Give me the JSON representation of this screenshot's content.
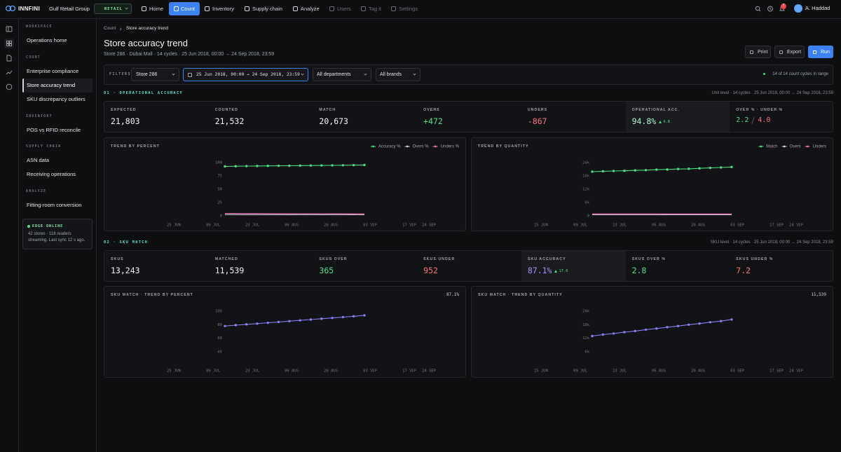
{
  "nav": {
    "brand": "INNFINI",
    "org": "Gulf Retail Group",
    "badge": "RETAIL",
    "items": [
      {
        "label": "Home"
      },
      {
        "label": "Count",
        "active": true
      },
      {
        "label": "Inventory"
      },
      {
        "label": "Supply chain"
      },
      {
        "label": "Analyze"
      },
      {
        "label": "Users",
        "dim": true
      },
      {
        "label": "Tag it",
        "dim": true
      },
      {
        "label": "Settings",
        "dim": true
      }
    ],
    "notifications": 7,
    "user": "A. Haddad"
  },
  "sidebar": {
    "sections": [
      {
        "title": "WORKSPACE",
        "items": [
          {
            "label": "Operations home"
          }
        ]
      },
      {
        "title": "COUNT",
        "items": [
          {
            "label": "Enterprise compliance"
          },
          {
            "label": "Store accuracy trend",
            "active": true
          },
          {
            "label": "SKU discrepancy outliers"
          }
        ]
      },
      {
        "title": "INVENTORY",
        "items": [
          {
            "label": "POS vs RFID reconcile"
          }
        ]
      },
      {
        "title": "SUPPLY CHAIN",
        "items": [
          {
            "label": "ASN data"
          },
          {
            "label": "Receiving operations"
          }
        ]
      },
      {
        "title": "ANALYZE",
        "items": [
          {
            "label": "Fitting-room conversion"
          }
        ]
      }
    ],
    "status": {
      "title": "EDGE ONLINE",
      "text": "42 stores · 118 readers streaming. Last sync 12 s ago."
    }
  },
  "page": {
    "breadcrumb": [
      "Count",
      "Store accuracy trend"
    ],
    "title": "Store accuracy trend",
    "subtitle": "Store 286 · Dubai Mall · 14 cycles · 25 Jun 2018, 00:00 → 24 Sep 2018, 23:59",
    "actions": [
      {
        "label": "Print"
      },
      {
        "label": "Export"
      },
      {
        "label": "Run",
        "primary": true
      }
    ]
  },
  "filters": {
    "label": "FILTERS",
    "store": "Store 286",
    "range": "25 Jun 2018, 00:00 → 24 Sep 2018, 23:59",
    "department": "All departments",
    "brand": "All brands",
    "summary": "14 of 14 count cycles in range"
  },
  "sections": [
    {
      "heading": "01 · OPERATIONAL ACCURACY",
      "meta": "Unit level · 14 cycles · 25 Jun 2018, 00:00 → 24 Sep 2018, 23:59",
      "kpis": [
        {
          "label": "EXPECTED",
          "value": "21,803"
        },
        {
          "label": "COUNTED",
          "value": "21,532"
        },
        {
          "label": "MATCH",
          "value": "20,673"
        },
        {
          "label": "OVERS",
          "value": "+472",
          "tone": "green"
        },
        {
          "label": "UNDERS",
          "value": "-867",
          "tone": "red"
        },
        {
          "label": "OPERATIONAL ACC.",
          "value": "94.8%",
          "tone": "mint",
          "delta": "4.8",
          "highlight": true
        },
        {
          "label": "OVER % · UNDER %",
          "values": [
            "2.2",
            "4.0"
          ],
          "tones": [
            "green",
            "red"
          ]
        }
      ],
      "charts": [
        {
          "type": "line",
          "title": "TREND BY PERCENT",
          "ylim": [
            0,
            100
          ],
          "yticks": [
            0,
            25,
            50,
            75,
            100
          ],
          "x_labels": [
            "25 JUN",
            "09 JUL",
            "23 JUL",
            "06 AUG",
            "20 AUG",
            "03 SEP",
            "17 SEP",
            "24 SEP"
          ],
          "series": [
            {
              "name": "Accuracy %",
              "color": "#4ade80",
              "markers": true,
              "values": [
                92.8,
                93.1,
                93.4,
                93.6,
                93.8,
                94.0,
                94.1,
                94.3,
                94.5,
                94.6,
                94.8,
                95.0,
                95.2,
                95.4
              ]
            },
            {
              "name": "Overs %",
              "color": "#d4d4d8",
              "values": [
                2.4,
                2.3,
                2.3,
                2.2,
                2.2,
                2.2,
                2.1,
                2.2,
                2.2,
                2.1,
                2.2,
                2.2,
                2.1,
                2.2
              ]
            },
            {
              "name": "Unders %",
              "color": "#f472b6",
              "values": [
                4.6,
                4.5,
                4.4,
                4.3,
                4.2,
                4.1,
                4.1,
                4.0,
                3.9,
                3.9,
                3.8,
                3.8,
                3.7,
                3.6
              ]
            }
          ]
        },
        {
          "type": "line",
          "title": "TREND BY QUANTITY",
          "ylim": [
            0,
            24000
          ],
          "yticks": [
            0,
            {
              "value": 6000,
              "label": "6k"
            },
            {
              "value": 12000,
              "label": "12k"
            },
            {
              "value": 18000,
              "label": "18k"
            },
            {
              "value": 24000,
              "label": "24k"
            }
          ],
          "x_labels": [
            "25 JUN",
            "09 JUL",
            "23 JUL",
            "06 AUG",
            "20 AUG",
            "03 SEP",
            "17 SEP",
            "24 SEP"
          ],
          "series": [
            {
              "name": "Match",
              "color": "#4ade80",
              "markers": true,
              "values": [
                19900,
                20100,
                20200,
                20300,
                20500,
                20600,
                20800,
                20900,
                21100,
                21200,
                21400,
                21600,
                21800,
                22000
              ]
            },
            {
              "name": "Overs",
              "color": "#d4d4d8",
              "values": [
                480,
                470,
                475,
                470,
                465,
                470,
                472,
                468,
                470,
                474,
                470,
                472,
                470,
                472
              ]
            },
            {
              "name": "Unders",
              "color": "#f472b6",
              "values": [
                900,
                890,
                885,
                880,
                875,
                872,
                870,
                868,
                866,
                865,
                868,
                866,
                867,
                867
              ]
            }
          ]
        }
      ]
    },
    {
      "heading": "02 · SKU MATCH",
      "meta": "SKU level · 14 cycles · 25 Jun 2018, 00:00 → 24 Sep 2018, 23:59",
      "kpis": [
        {
          "label": "SKUS",
          "value": "13,243"
        },
        {
          "label": "MATCHED",
          "value": "11,539"
        },
        {
          "label": "SKUS OVER",
          "value": "365",
          "tone": "green"
        },
        {
          "label": "SKUS UNDER",
          "value": "952",
          "tone": "red"
        },
        {
          "label": "SKU ACCURACY",
          "value": "87.1%",
          "tone": "purple",
          "delta": "17.0",
          "highlight": true
        },
        {
          "label": "SKUS OVER %",
          "value": "2.8",
          "tone": "green"
        },
        {
          "label": "SKUS UNDER %",
          "value": "7.2",
          "tone": "red"
        }
      ],
      "charts": [
        {
          "type": "line",
          "title": "SKU MATCH · TREND BY PERCENT",
          "headline": "87.1%",
          "ylim": [
            40,
            100
          ],
          "yticks": [
            40,
            60,
            80,
            100
          ],
          "x_labels": [
            "25 JUN",
            "09 JUL",
            "23 JUL",
            "06 AUG",
            "20 AUG",
            "03 SEP",
            "17 SEP",
            "24 SEP"
          ],
          "series": [
            {
              "color": "#8b7cf6",
              "markers": true,
              "values": [
                78,
                79.3,
                80.5,
                81.6,
                82.8,
                84,
                85.2,
                86.4,
                87.6,
                88.8,
                90,
                91.2,
                92.4,
                93.8
              ]
            }
          ]
        },
        {
          "type": "line",
          "title": "SKU MATCH · TREND BY QUANTITY",
          "headline": "11,539",
          "ylim": [
            6000,
            24000
          ],
          "yticks": [
            {
              "value": 6000,
              "label": "6k"
            },
            {
              "value": 12000,
              "label": "12k"
            },
            {
              "value": 18000,
              "label": "18k"
            },
            {
              "value": 24000,
              "label": "24k"
            }
          ],
          "x_labels": [
            "25 JUN",
            "09 JUL",
            "23 JUL",
            "06 AUG",
            "20 AUG",
            "03 SEP",
            "17 SEP",
            "24 SEP"
          ],
          "series": [
            {
              "color": "#8b7cf6",
              "markers": true,
              "values": [
                13000,
                13600,
                14100,
                14700,
                15200,
                15800,
                16300,
                16900,
                17400,
                18000,
                18500,
                19100,
                19600,
                20300
              ]
            }
          ]
        }
      ]
    }
  ]
}
